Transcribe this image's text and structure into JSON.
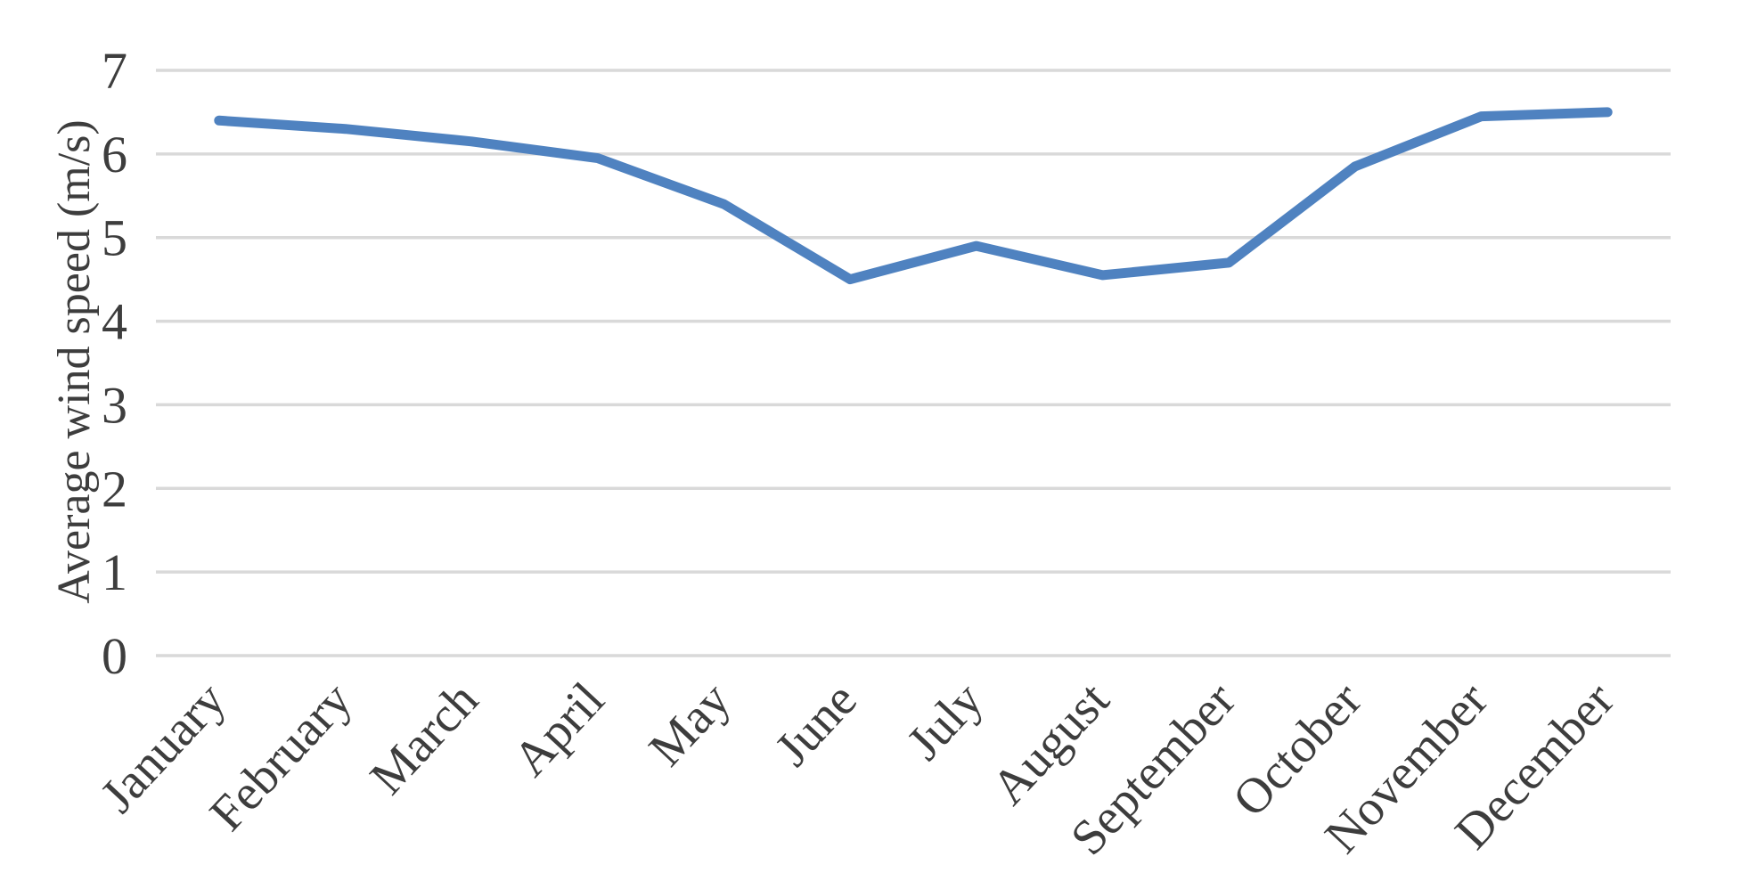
{
  "chart_data": {
    "type": "line",
    "title": "",
    "categories": [
      "January",
      "February",
      "March",
      "April",
      "May",
      "June",
      "July",
      "August",
      "September",
      "October",
      "November",
      "December"
    ],
    "values": [
      6.4,
      6.3,
      6.15,
      5.95,
      5.4,
      4.5,
      4.9,
      4.55,
      4.7,
      5.85,
      6.45,
      6.5
    ],
    "xlabel": "",
    "ylabel": "Average wind speed (m/s)",
    "ylim": [
      0,
      7
    ],
    "yticks": [
      0,
      1,
      2,
      3,
      4,
      5,
      6,
      7
    ],
    "grid": true,
    "legend": false,
    "line_color": "#4f82c0",
    "grid_color": "#d9d9d9",
    "text_color": "#3d3d3d"
  }
}
